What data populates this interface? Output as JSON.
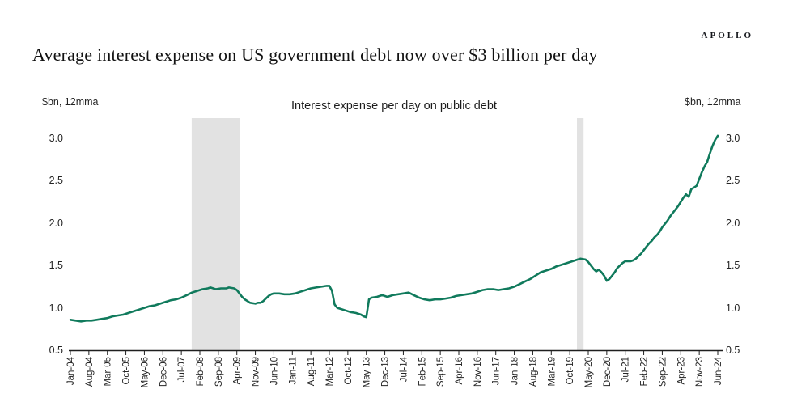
{
  "brand": {
    "logo_text": "APOLLO"
  },
  "page_title": "Average interest expense on US government debt now over $3 billion per day",
  "chart_data": {
    "type": "line",
    "title": "Interest expense per day on public debt",
    "unit_label_left": "$bn, 12mma",
    "unit_label_right": "$bn, 12mma",
    "ylim": [
      0.5,
      3.2
    ],
    "y_ticks": [
      "3.0",
      "2.5",
      "2.0",
      "1.5",
      "1.0",
      "0.5"
    ],
    "y_tick_values": [
      3.0,
      2.5,
      2.0,
      1.5,
      1.0,
      0.5
    ],
    "x_tick_labels": [
      "Jan-04",
      "Aug-04",
      "Mar-05",
      "Oct-05",
      "May-06",
      "Dec-06",
      "Jul-07",
      "Feb-08",
      "Sep-08",
      "Apr-09",
      "Nov-09",
      "Jun-10",
      "Jan-11",
      "Aug-11",
      "Mar-12",
      "Oct-12",
      "May-13",
      "Dec-13",
      "Jul-14",
      "Feb-15",
      "Sep-15",
      "Apr-16",
      "Nov-16",
      "Jun-17",
      "Jan-18",
      "Aug-18",
      "Mar-19",
      "Oct-19",
      "May-20",
      "Dec-20",
      "Jul-21",
      "Feb-22",
      "Sep-22",
      "Apr-23",
      "Nov-23",
      "Jun-24"
    ],
    "x_tick_step_months": 7,
    "x_range_months": [
      0,
      245
    ],
    "grid": false,
    "legend_position": "none",
    "line_color": "#107a5c",
    "band_color": "#e2e2e2",
    "axis_color": "#1f1f1f",
    "recession_bands": [
      {
        "from_label": "Dec-07",
        "to_label": "Jun-09",
        "from_month": 45.9,
        "to_month": 64.0
      },
      {
        "from_label": "Feb-20",
        "to_label": "Apr-20",
        "from_month": 191.7,
        "to_month": 194.2
      }
    ],
    "series": [
      {
        "name": "Interest expense per day on public debt",
        "points_month_value": [
          [
            0,
            0.86
          ],
          [
            2,
            0.85
          ],
          [
            4,
            0.84
          ],
          [
            6,
            0.85
          ],
          [
            8,
            0.85
          ],
          [
            10,
            0.86
          ],
          [
            12,
            0.87
          ],
          [
            14,
            0.88
          ],
          [
            16,
            0.9
          ],
          [
            18,
            0.91
          ],
          [
            20,
            0.92
          ],
          [
            22,
            0.94
          ],
          [
            24,
            0.96
          ],
          [
            26,
            0.98
          ],
          [
            28,
            1.0
          ],
          [
            30,
            1.02
          ],
          [
            32,
            1.03
          ],
          [
            34,
            1.05
          ],
          [
            36,
            1.07
          ],
          [
            38,
            1.09
          ],
          [
            40,
            1.1
          ],
          [
            42,
            1.12
          ],
          [
            44,
            1.15
          ],
          [
            46,
            1.18
          ],
          [
            48,
            1.2
          ],
          [
            50,
            1.22
          ],
          [
            52,
            1.23
          ],
          [
            53,
            1.24
          ],
          [
            55,
            1.22
          ],
          [
            57,
            1.23
          ],
          [
            59,
            1.23
          ],
          [
            60,
            1.24
          ],
          [
            62,
            1.23
          ],
          [
            63,
            1.21
          ],
          [
            64,
            1.17
          ],
          [
            65,
            1.13
          ],
          [
            66,
            1.1
          ],
          [
            67,
            1.08
          ],
          [
            68,
            1.06
          ],
          [
            70,
            1.05
          ],
          [
            71,
            1.06
          ],
          [
            72,
            1.06
          ],
          [
            73,
            1.08
          ],
          [
            74,
            1.11
          ],
          [
            75,
            1.14
          ],
          [
            76,
            1.16
          ],
          [
            77,
            1.17
          ],
          [
            79,
            1.17
          ],
          [
            81,
            1.16
          ],
          [
            83,
            1.16
          ],
          [
            85,
            1.17
          ],
          [
            87,
            1.19
          ],
          [
            89,
            1.21
          ],
          [
            91,
            1.23
          ],
          [
            93,
            1.24
          ],
          [
            95,
            1.25
          ],
          [
            97,
            1.26
          ],
          [
            98,
            1.26
          ],
          [
            99,
            1.2
          ],
          [
            100,
            1.04
          ],
          [
            101,
            1.0
          ],
          [
            102,
            0.99
          ],
          [
            104,
            0.97
          ],
          [
            106,
            0.95
          ],
          [
            108,
            0.94
          ],
          [
            110,
            0.92
          ],
          [
            111,
            0.9
          ],
          [
            112,
            0.89
          ],
          [
            113,
            1.1
          ],
          [
            114,
            1.12
          ],
          [
            116,
            1.13
          ],
          [
            118,
            1.15
          ],
          [
            120,
            1.13
          ],
          [
            122,
            1.15
          ],
          [
            124,
            1.16
          ],
          [
            126,
            1.17
          ],
          [
            128,
            1.18
          ],
          [
            130,
            1.15
          ],
          [
            132,
            1.12
          ],
          [
            134,
            1.1
          ],
          [
            136,
            1.09
          ],
          [
            138,
            1.1
          ],
          [
            140,
            1.1
          ],
          [
            142,
            1.11
          ],
          [
            144,
            1.12
          ],
          [
            146,
            1.14
          ],
          [
            148,
            1.15
          ],
          [
            150,
            1.16
          ],
          [
            152,
            1.17
          ],
          [
            154,
            1.19
          ],
          [
            156,
            1.21
          ],
          [
            158,
            1.22
          ],
          [
            160,
            1.22
          ],
          [
            162,
            1.21
          ],
          [
            164,
            1.22
          ],
          [
            166,
            1.23
          ],
          [
            168,
            1.25
          ],
          [
            170,
            1.28
          ],
          [
            172,
            1.31
          ],
          [
            174,
            1.34
          ],
          [
            176,
            1.38
          ],
          [
            178,
            1.42
          ],
          [
            180,
            1.44
          ],
          [
            182,
            1.46
          ],
          [
            184,
            1.49
          ],
          [
            186,
            1.51
          ],
          [
            188,
            1.53
          ],
          [
            190,
            1.55
          ],
          [
            192,
            1.57
          ],
          [
            193,
            1.58
          ],
          [
            195,
            1.57
          ],
          [
            196,
            1.54
          ],
          [
            197,
            1.5
          ],
          [
            198,
            1.46
          ],
          [
            199,
            1.43
          ],
          [
            200,
            1.45
          ],
          [
            201,
            1.42
          ],
          [
            202,
            1.38
          ],
          [
            203,
            1.32
          ],
          [
            204,
            1.34
          ],
          [
            205,
            1.38
          ],
          [
            206,
            1.42
          ],
          [
            207,
            1.47
          ],
          [
            208,
            1.5
          ],
          [
            209,
            1.53
          ],
          [
            210,
            1.55
          ],
          [
            211,
            1.55
          ],
          [
            212,
            1.55
          ],
          [
            213,
            1.56
          ],
          [
            214,
            1.58
          ],
          [
            215,
            1.61
          ],
          [
            216,
            1.64
          ],
          [
            217,
            1.68
          ],
          [
            218,
            1.72
          ],
          [
            219,
            1.76
          ],
          [
            220,
            1.79
          ],
          [
            221,
            1.83
          ],
          [
            222,
            1.86
          ],
          [
            223,
            1.9
          ],
          [
            224,
            1.95
          ],
          [
            225,
            1.99
          ],
          [
            226,
            2.03
          ],
          [
            227,
            2.08
          ],
          [
            228,
            2.12
          ],
          [
            229,
            2.16
          ],
          [
            230,
            2.2
          ],
          [
            231,
            2.25
          ],
          [
            232,
            2.3
          ],
          [
            233,
            2.34
          ],
          [
            234,
            2.31
          ],
          [
            235,
            2.4
          ],
          [
            236,
            2.42
          ],
          [
            237,
            2.44
          ],
          [
            238,
            2.52
          ],
          [
            239,
            2.6
          ],
          [
            240,
            2.67
          ],
          [
            241,
            2.72
          ],
          [
            242,
            2.82
          ],
          [
            243,
            2.91
          ],
          [
            244,
            2.98
          ],
          [
            245,
            3.03
          ]
        ]
      }
    ]
  }
}
